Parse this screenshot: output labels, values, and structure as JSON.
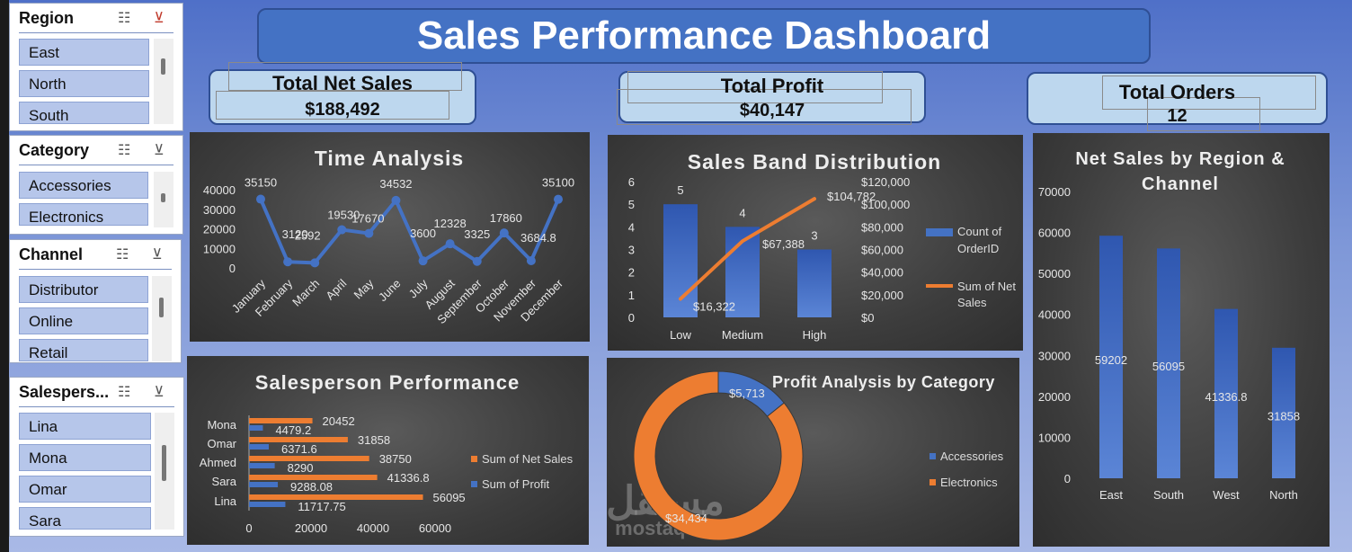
{
  "title": "Sales Performance Dashboard",
  "slicers": {
    "region": {
      "title": "Region",
      "items": [
        "East",
        "North",
        "South"
      ]
    },
    "category": {
      "title": "Category",
      "items": [
        "Accessories",
        "Electronics"
      ]
    },
    "channel": {
      "title": "Channel",
      "items": [
        "Distributor",
        "Online",
        "Retail"
      ]
    },
    "salesperson": {
      "title": "Salespers...",
      "items": [
        "Lina",
        "Mona",
        "Omar",
        "Sara"
      ]
    }
  },
  "kpis": {
    "net_sales": {
      "label": "Total Net Sales",
      "value": "$188,492"
    },
    "profit": {
      "label": "Total Profit",
      "value": "$40,147"
    },
    "orders": {
      "label": "Total Orders",
      "value": "12"
    }
  },
  "watermark": {
    "arabic": "مستقل",
    "latin": "mostaql.com"
  },
  "chart_data": [
    {
      "id": "time",
      "type": "line",
      "title": "Time Analysis",
      "categories": [
        "January",
        "February",
        "March",
        "April",
        "May",
        "June",
        "July",
        "August",
        "September",
        "October",
        "November",
        "December"
      ],
      "values": [
        35150,
        3120,
        2592,
        19530,
        17670,
        34532,
        3600,
        12328,
        3325,
        17860,
        3684.8,
        35100
      ],
      "labels": [
        "35150",
        "3120",
        "2592",
        "19530",
        "17670",
        "34532",
        "3600",
        "12328",
        "3325",
        "17860",
        "3684.8",
        "35100"
      ],
      "yticks": [
        "40000",
        "30000",
        "20000",
        "10000",
        "0"
      ],
      "ylim": [
        0,
        40000
      ]
    },
    {
      "id": "band",
      "type": "bar",
      "title": "Sales Band Distribution",
      "categories": [
        "Low",
        "Medium",
        "High"
      ],
      "series": [
        {
          "name": "Count of OrderID",
          "values": [
            5,
            4,
            3
          ],
          "labels": [
            "5",
            "4",
            "3"
          ]
        },
        {
          "name": "Sum of Net Sales",
          "values": [
            16322,
            67388,
            104782
          ],
          "labels": [
            "$16,322",
            "$67,388",
            "$104,782"
          ]
        }
      ],
      "legend": [
        "Count of",
        "OrderID",
        "Sum of Net",
        "Sales"
      ],
      "yticks_left": [
        "6",
        "5",
        "4",
        "3",
        "2",
        "1",
        "0"
      ],
      "yticks_right": [
        "$120,000",
        "$100,000",
        "$80,000",
        "$60,000",
        "$40,000",
        "$20,000",
        "$0"
      ],
      "ylim_left": [
        0,
        6
      ],
      "ylim_right": [
        0,
        120000
      ]
    },
    {
      "id": "region",
      "type": "bar",
      "title": "Net Sales by Region & Channel",
      "title_lines": [
        "Net Sales by Region &",
        "Channel"
      ],
      "categories": [
        "East",
        "South",
        "West",
        "North"
      ],
      "values": [
        59202,
        56095,
        41336.8,
        31858
      ],
      "labels": [
        "59202",
        "56095",
        "41336.8",
        "31858"
      ],
      "yticks": [
        "70000",
        "60000",
        "50000",
        "40000",
        "30000",
        "20000",
        "10000",
        "0"
      ],
      "ylim": [
        0,
        70000
      ]
    },
    {
      "id": "salesperson",
      "type": "bar",
      "orientation": "horizontal",
      "title": "Salesperson Performance",
      "categories": [
        "Mona",
        "Omar",
        "Ahmed",
        "Sara",
        "Lina"
      ],
      "series": [
        {
          "name": "Sum of Net Sales",
          "values": [
            20452,
            31858,
            38750,
            41336.8,
            56095
          ],
          "labels": [
            "20452",
            "31858",
            "38750",
            "41336.8",
            "56095"
          ]
        },
        {
          "name": "Sum of Profit",
          "values": [
            4479.2,
            6371.6,
            8290,
            9288.08,
            11717.75
          ],
          "labels": [
            "4479.2",
            "6371.6",
            "8290",
            "9288.08",
            "11717.75"
          ]
        }
      ],
      "xticks": [
        "0",
        "20000",
        "40000",
        "60000"
      ],
      "xlim": [
        0,
        60000
      ]
    },
    {
      "id": "profit",
      "type": "pie",
      "subtype": "doughnut",
      "title": "Profit Analysis by Category",
      "categories": [
        "Accessories",
        "Electronics"
      ],
      "values": [
        5713,
        34434
      ],
      "labels": [
        "$5,713",
        "$34,434"
      ]
    }
  ],
  "colors": {
    "blue": "#4472c4",
    "orange": "#ed7d31",
    "title_bg": "#4472c4",
    "kpi_bg": "#bdd7ee",
    "slicer_item": "#b6c6ea"
  }
}
